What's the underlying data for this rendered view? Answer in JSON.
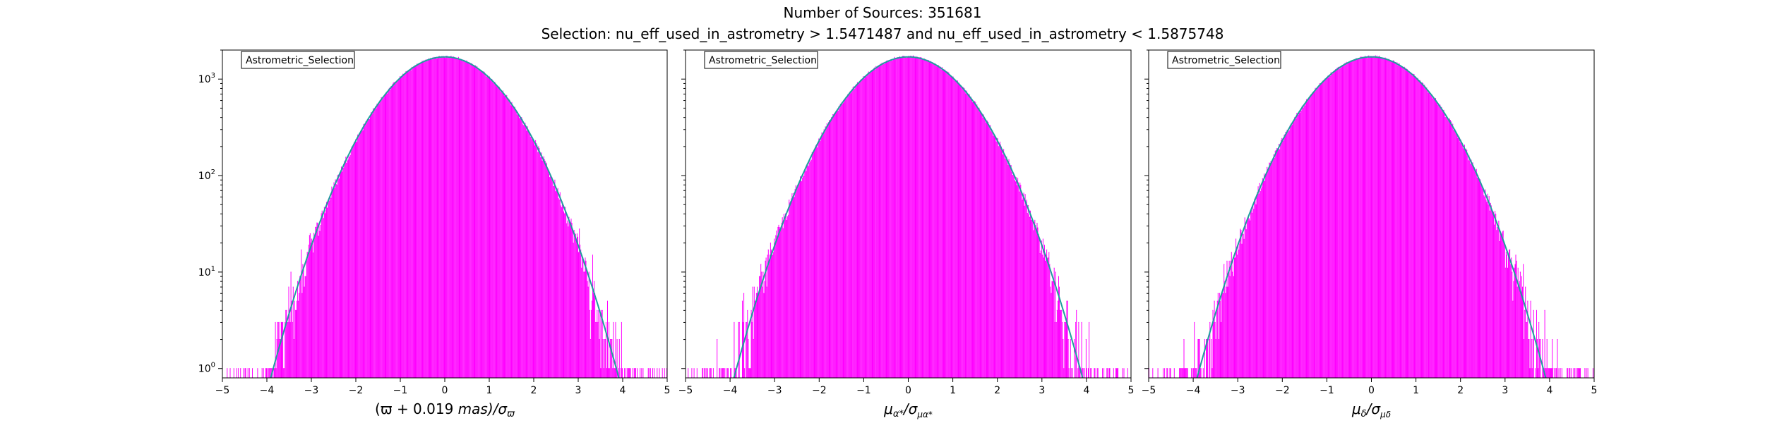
{
  "figure": {
    "title_line1": "Number of Sources: 351681",
    "title_line2": "Selection: nu_eff_used_in_astrometry > 1.5471487 and nu_eff_used_in_astrometry < 1.5875748"
  },
  "colors": {
    "histogram": "#ff00ff",
    "fit_line": "#1f9e9e",
    "axis": "#000000"
  },
  "chart_data": [
    {
      "type": "histogram",
      "legend": "Astrometric_Selection",
      "legend_position": "top-left",
      "xlabel_parts": [
        "(ϖ + 0.019 ",
        "mas",
        ")/σ",
        "ϖ"
      ],
      "xlabel": "(ϖ + 0.019 mas)/σϖ",
      "xlim": [
        -5,
        5
      ],
      "ylim": [
        0.8,
        2000
      ],
      "yscale": "log",
      "xticks": [
        "−5",
        "−4",
        "−3",
        "−2",
        "−1",
        "0",
        "1",
        "2",
        "3",
        "4",
        "5"
      ],
      "yticks": [
        {
          "base": "10",
          "exp": "0"
        },
        {
          "base": "10",
          "exp": "1"
        },
        {
          "base": "10",
          "exp": "2"
        },
        {
          "base": "10",
          "exp": "3"
        }
      ],
      "peak": 1700,
      "sigma": 1.0,
      "series": [
        {
          "name": "histogram",
          "x": [
            -4.4,
            -4.0,
            -3.6,
            -3.2,
            -2.8,
            -2.4,
            -2.0,
            -1.6,
            -1.2,
            -0.8,
            -0.4,
            0.0,
            0.4,
            0.8,
            1.2,
            1.6,
            2.0,
            2.4,
            2.8,
            3.2,
            3.6,
            4.0,
            4.4
          ],
          "y": [
            1,
            1.5,
            3.5,
            15,
            35,
            100,
            230,
            470,
            820,
            1230,
            1560,
            1700,
            1560,
            1230,
            820,
            470,
            230,
            100,
            35,
            15,
            3.5,
            1.5,
            1
          ]
        },
        {
          "name": "gaussian fit",
          "x": [
            -4.1,
            -3,
            -2,
            -1,
            0,
            1,
            2,
            3,
            4.1
          ],
          "y": [
            1,
            19,
            230,
            1031,
            1700,
            1031,
            230,
            19,
            1
          ]
        }
      ]
    },
    {
      "type": "histogram",
      "legend": "Astrometric_Selection",
      "legend_position": "top-left",
      "xlabel_parts": [
        "μ",
        "α*",
        "/σ",
        "μα*"
      ],
      "xlabel": "μα*/σμα*",
      "xlim": [
        -5,
        5
      ],
      "ylim": [
        0.8,
        2000
      ],
      "yscale": "log",
      "xticks": [
        "−5",
        "−4",
        "−3",
        "−2",
        "−1",
        "0",
        "1",
        "2",
        "3",
        "4",
        "5"
      ],
      "yticks": [],
      "peak": 1700,
      "sigma": 1.0,
      "series": [
        {
          "name": "histogram",
          "x": [
            -4.4,
            -4.0,
            -3.6,
            -3.2,
            -2.8,
            -2.4,
            -2.0,
            -1.6,
            -1.2,
            -0.8,
            -0.4,
            0.0,
            0.4,
            0.8,
            1.2,
            1.6,
            2.0,
            2.4,
            2.8,
            3.2,
            3.6,
            4.0,
            4.4
          ],
          "y": [
            1,
            1.5,
            3.5,
            15,
            35,
            100,
            230,
            470,
            820,
            1230,
            1560,
            1700,
            1560,
            1230,
            820,
            470,
            230,
            100,
            35,
            15,
            3.5,
            1.5,
            1
          ]
        },
        {
          "name": "gaussian fit",
          "x": [
            -4.1,
            -3,
            -2,
            -1,
            0,
            1,
            2,
            3,
            4.1
          ],
          "y": [
            1,
            19,
            230,
            1031,
            1700,
            1031,
            230,
            19,
            1
          ]
        }
      ]
    },
    {
      "type": "histogram",
      "legend": "Astrometric_Selection",
      "legend_position": "top-left",
      "xlabel_parts": [
        "μ",
        "δ",
        "/σ",
        "μδ"
      ],
      "xlabel": "μδ/σμδ",
      "xlim": [
        -5,
        5
      ],
      "ylim": [
        0.8,
        2000
      ],
      "yscale": "log",
      "xticks": [
        "−5",
        "−4",
        "−3",
        "−2",
        "−1",
        "0",
        "1",
        "2",
        "3",
        "4",
        "5"
      ],
      "yticks": [],
      "peak": 1700,
      "sigma": 1.0,
      "series": [
        {
          "name": "histogram",
          "x": [
            -4.4,
            -4.0,
            -3.6,
            -3.2,
            -2.8,
            -2.4,
            -2.0,
            -1.6,
            -1.2,
            -0.8,
            -0.4,
            0.0,
            0.4,
            0.8,
            1.2,
            1.6,
            2.0,
            2.4,
            2.8,
            3.2,
            3.6,
            4.0,
            4.4
          ],
          "y": [
            1,
            1.5,
            3.5,
            15,
            35,
            100,
            230,
            470,
            820,
            1230,
            1560,
            1700,
            1560,
            1230,
            820,
            470,
            230,
            100,
            35,
            15,
            3.5,
            1.5,
            1
          ]
        },
        {
          "name": "gaussian fit",
          "x": [
            -4.15,
            -3,
            -2,
            -1,
            0,
            1,
            2,
            3,
            4.1
          ],
          "y": [
            1,
            19,
            230,
            1031,
            1700,
            1031,
            230,
            19,
            1
          ]
        }
      ]
    }
  ]
}
